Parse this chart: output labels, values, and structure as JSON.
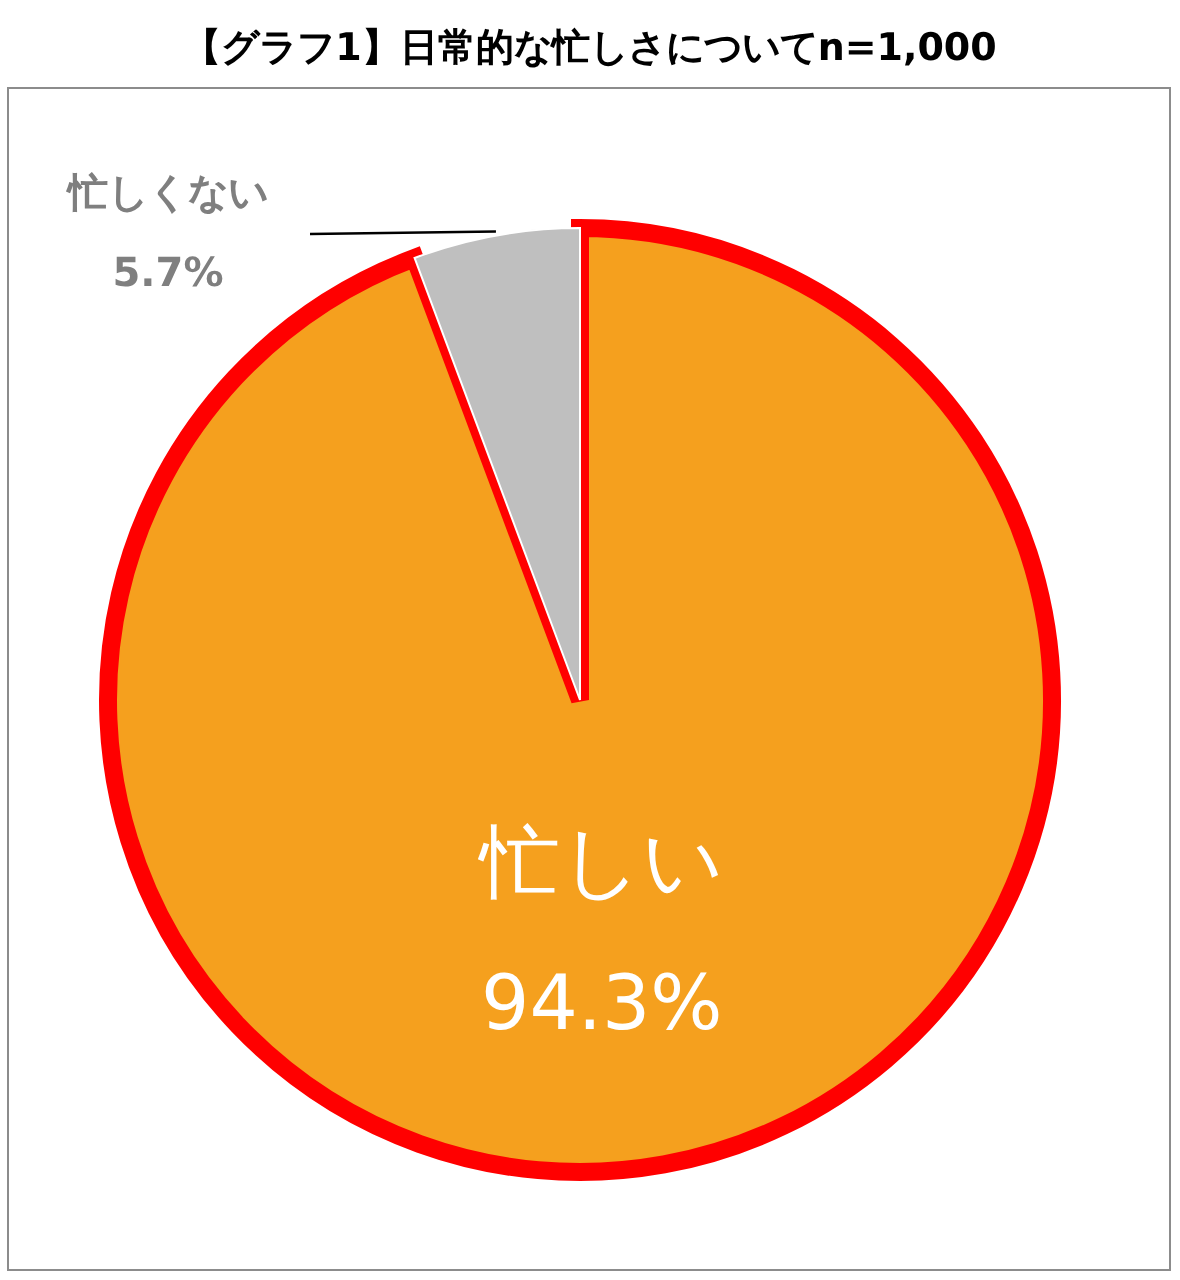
{
  "chart_data": {
    "type": "pie",
    "title": "【グラフ1】日常的な忙しさについてn=1,000",
    "categories": [
      "忙しい",
      "忙しくない"
    ],
    "values": [
      94.3,
      5.7
    ],
    "colors": [
      "#f5a01e",
      "#bfbfbf"
    ],
    "value_labels": [
      "94.3%",
      "5.7%"
    ]
  }
}
